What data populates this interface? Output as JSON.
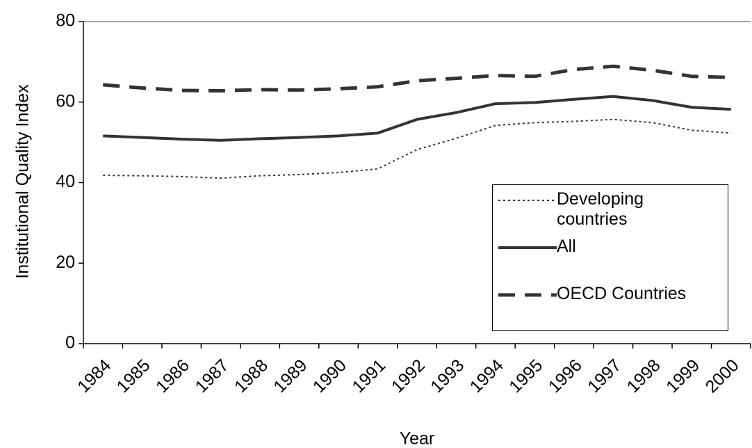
{
  "chart_data": {
    "type": "line",
    "x_label": "Year",
    "y_label": "Institutional Quality Index",
    "categories": [
      "1984",
      "1985",
      "1986",
      "1987",
      "1988",
      "1989",
      "1990",
      "1991",
      "1992",
      "1993",
      "1994",
      "1995",
      "1996",
      "1997",
      "1998",
      "1999",
      "2000"
    ],
    "series": [
      {
        "name": "Developing countries",
        "color": "#333333",
        "line_style": "dotted",
        "values": [
          41.8,
          41.7,
          41.5,
          41.1,
          41.7,
          42.0,
          42.5,
          43.4,
          48.2,
          51.0,
          54.2,
          54.9,
          55.2,
          55.7,
          54.9,
          53.0,
          52.3
        ]
      },
      {
        "name": "All",
        "color": "#333333",
        "line_style": "solid",
        "values": [
          51.6,
          51.2,
          50.8,
          50.5,
          50.9,
          51.2,
          51.6,
          52.3,
          55.7,
          57.4,
          59.6,
          59.9,
          60.7,
          61.4,
          60.4,
          58.7,
          58.2
        ]
      },
      {
        "name": "OECD Countries",
        "color": "#333333",
        "line_style": "dashed",
        "values": [
          64.3,
          63.5,
          62.9,
          62.8,
          63.1,
          63.0,
          63.3,
          63.8,
          65.3,
          65.9,
          66.6,
          66.4,
          68.1,
          68.9,
          67.9,
          66.4,
          66.1
        ]
      }
    ],
    "ylim": [
      0,
      80
    ],
    "yticks": [
      0,
      20,
      40,
      60,
      80
    ],
    "grid": false,
    "legend": "right"
  }
}
